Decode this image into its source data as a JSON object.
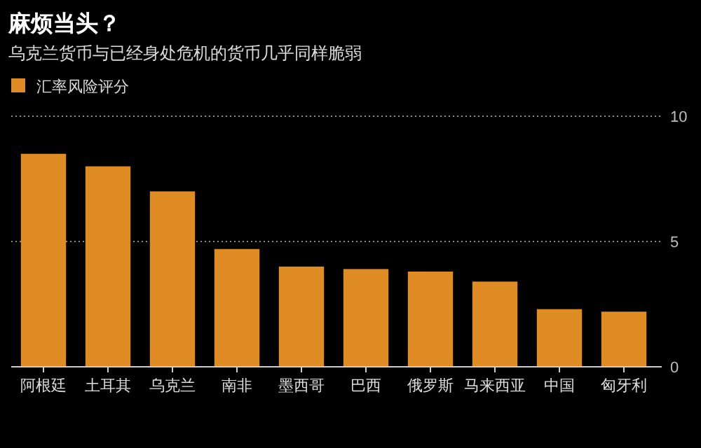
{
  "chart_data": {
    "type": "bar",
    "title": "麻烦当头？",
    "subtitle": "乌克兰货币与已经身处危机的货币几乎同样脆弱",
    "categories": [
      "阿根廷",
      "土耳其",
      "乌克兰",
      "南非",
      "墨西哥",
      "巴西",
      "俄罗斯",
      "马来西亚",
      "中国",
      "匈牙利"
    ],
    "series": [
      {
        "name": "汇率风险评分",
        "color": "#e08c24",
        "values": [
          8.5,
          8.0,
          7.0,
          4.7,
          4.0,
          3.9,
          3.8,
          3.4,
          2.3,
          2.2
        ]
      }
    ],
    "ylim": [
      0,
      10
    ],
    "yticks": [
      0,
      5,
      10
    ],
    "grid": "y",
    "legend": "top left"
  }
}
